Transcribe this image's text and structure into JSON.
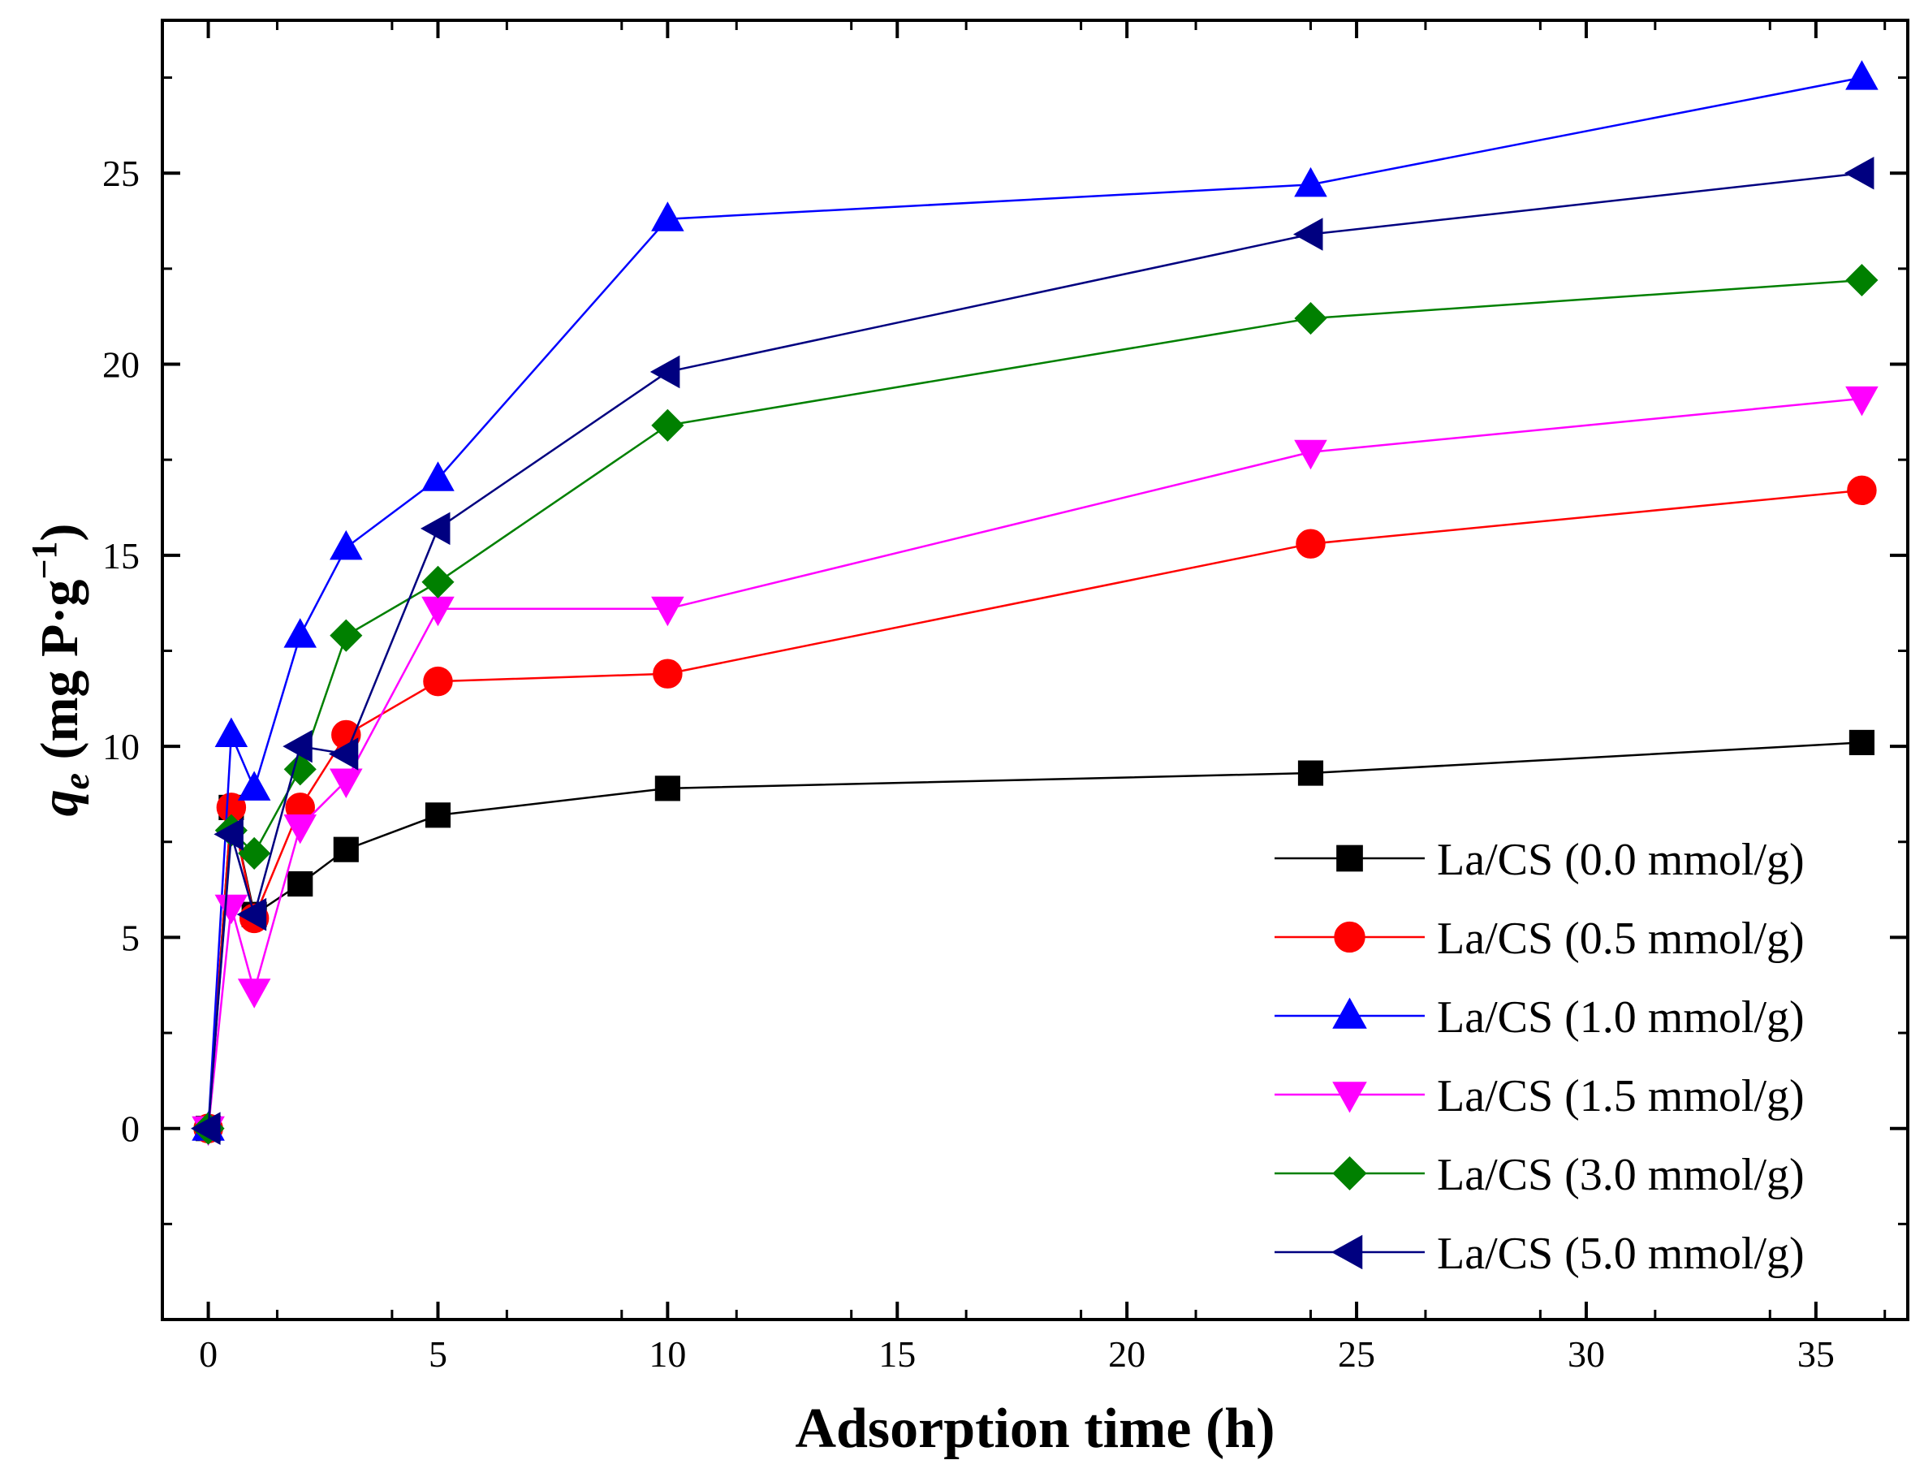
{
  "chart_data": {
    "type": "line",
    "title": "",
    "xlabel": "Adsorption time (h)",
    "ylabel": {
      "symbol": "q",
      "subscript": "e",
      "units_open": " (mg P·g",
      "superscript": "−1",
      "units_close": ")"
    },
    "xlim": [
      -1,
      37
    ],
    "ylim": [
      -5,
      29
    ],
    "xticks": [
      0,
      5,
      10,
      15,
      20,
      25,
      30,
      35
    ],
    "yticks": [
      0,
      5,
      10,
      15,
      20,
      25
    ],
    "x": [
      0,
      0.5,
      1,
      2,
      3,
      5,
      10,
      24,
      36
    ],
    "legend_position": "bottom-right",
    "series": [
      {
        "name": "La/CS (0.0 mmol/g)",
        "color": "#000000",
        "marker": "square",
        "values": [
          0,
          8.4,
          5.6,
          6.4,
          7.3,
          8.2,
          8.9,
          9.3,
          10.1
        ]
      },
      {
        "name": "La/CS (0.5 mmol/g)",
        "color": "#ff0000",
        "marker": "circle",
        "values": [
          0,
          8.4,
          5.5,
          8.4,
          10.3,
          11.7,
          11.9,
          15.3,
          16.7
        ]
      },
      {
        "name": "La/CS (1.0 mmol/g)",
        "color": "#0000ff",
        "marker": "triangle-up",
        "values": [
          0,
          10.3,
          8.9,
          12.9,
          15.2,
          17.0,
          23.8,
          24.7,
          27.5
        ]
      },
      {
        "name": "La/CS (1.5 mmol/g)",
        "color": "#ff00ff",
        "marker": "triangle-down",
        "values": [
          0,
          5.8,
          3.6,
          7.9,
          9.1,
          13.6,
          13.6,
          17.7,
          19.1
        ]
      },
      {
        "name": "La/CS (3.0 mmol/g)",
        "color": "#008000",
        "marker": "diamond",
        "values": [
          0,
          7.8,
          7.2,
          9.4,
          12.9,
          14.3,
          18.4,
          21.2,
          22.2
        ]
      },
      {
        "name": "La/CS (5.0 mmol/g)",
        "color": "#000080",
        "marker": "triangle-left",
        "values": [
          0,
          7.7,
          5.6,
          10.0,
          9.8,
          15.7,
          19.8,
          23.4,
          25.0
        ]
      }
    ]
  }
}
